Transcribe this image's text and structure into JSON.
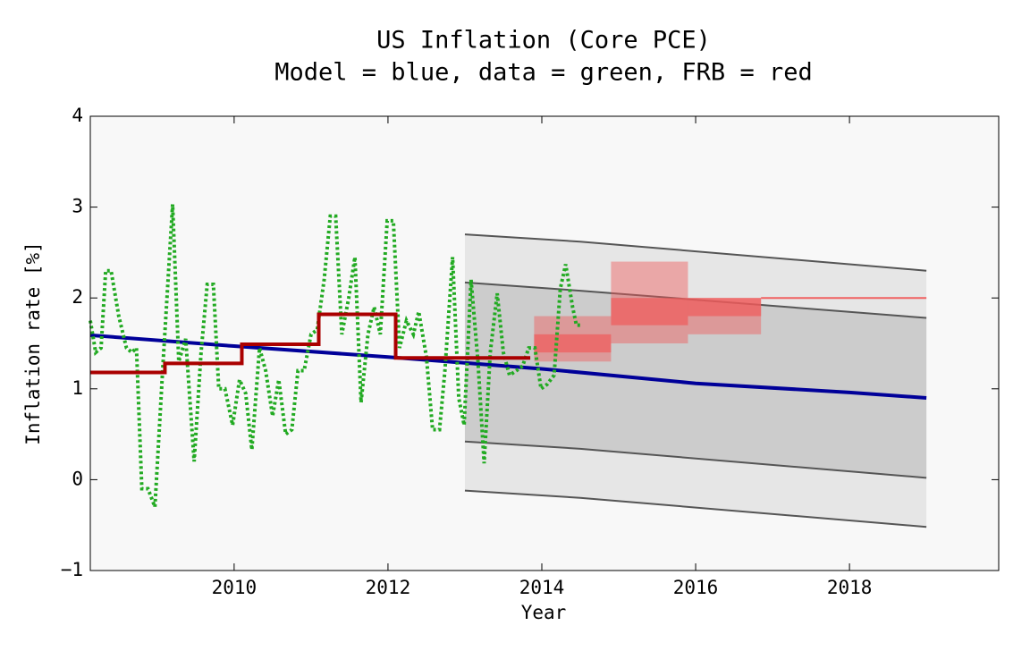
{
  "chart_data": {
    "type": "line",
    "title": "US Inflation (Core PCE)",
    "subtitle": "Model = blue, data = green, FRB = red",
    "xlabel": "Year",
    "ylabel": "Inflation rate [%]",
    "xlim": [
      2008.13,
      2019.94
    ],
    "ylim": [
      -1,
      4
    ],
    "xticks": [
      2010,
      2012,
      2014,
      2016,
      2018
    ],
    "yticks": [
      {
        "value": -1,
        "label": "−1"
      },
      0,
      1,
      2,
      3,
      4
    ],
    "bands": [
      {
        "color": "#e6e6e6",
        "edge": "#555555",
        "x": [
          2013,
          2014.5,
          2019
        ],
        "upper": [
          2.7,
          2.62,
          2.3
        ],
        "lower": [
          -0.12,
          -0.2,
          -0.52
        ]
      },
      {
        "color": "#cccccc",
        "edge": "#555555",
        "x": [
          2013,
          2014.5,
          2019
        ],
        "upper": [
          2.17,
          2.08,
          1.78
        ],
        "lower": [
          0.42,
          0.34,
          0.02
        ]
      }
    ],
    "boxes": [
      {
        "color": "rgba(240,90,90,0.45)",
        "x0": 2013.9,
        "x1": 2014.9,
        "low": 1.3,
        "high": 1.8
      },
      {
        "color": "rgba(240,90,90,0.7)",
        "x0": 2013.9,
        "x1": 2014.9,
        "low": 1.4,
        "high": 1.6
      },
      {
        "color": "rgba(240,90,90,0.45)",
        "x0": 2014.9,
        "x1": 2015.9,
        "low": 1.5,
        "high": 2.4
      },
      {
        "color": "rgba(240,90,90,0.7)",
        "x0": 2014.9,
        "x1": 2015.9,
        "low": 1.7,
        "high": 2.0
      },
      {
        "color": "rgba(240,90,90,0.45)",
        "x0": 2015.9,
        "x1": 2016.85,
        "low": 1.6,
        "high": 2.0
      },
      {
        "color": "rgba(240,90,90,0.7)",
        "x0": 2015.9,
        "x1": 2016.85,
        "low": 1.8,
        "high": 2.0
      }
    ],
    "series": [
      {
        "color": "#000099",
        "width": 4,
        "x": [
          2008.13,
          2010,
          2012,
          2014,
          2016,
          2018,
          2019
        ],
        "values": [
          1.59,
          1.47,
          1.35,
          1.22,
          1.06,
          0.96,
          0.9
        ]
      },
      {
        "color": "#22aa22",
        "width": 4,
        "dash": "3,3",
        "x": [
          2008.13,
          2008.2,
          2008.27,
          2008.33,
          2008.4,
          2008.5,
          2008.6,
          2008.67,
          2008.73,
          2008.8,
          2008.88,
          2008.97,
          2009.07,
          2009.2,
          2009.28,
          2009.37,
          2009.48,
          2009.57,
          2009.65,
          2009.73,
          2009.8,
          2009.88,
          2009.98,
          2010.07,
          2010.15,
          2010.23,
          2010.33,
          2010.41,
          2010.5,
          2010.58,
          2010.67,
          2010.75,
          2010.83,
          2010.91,
          2011.0,
          2011.08,
          2011.17,
          2011.25,
          2011.32,
          2011.4,
          2011.49,
          2011.57,
          2011.65,
          2011.74,
          2011.82,
          2011.9,
          2011.99,
          2012.07,
          2012.15,
          2012.24,
          2012.33,
          2012.4,
          2012.5,
          2012.58,
          2012.67,
          2012.74,
          2012.84,
          2012.92,
          2012.99,
          2013.08,
          2013.17,
          2013.25,
          2013.33,
          2013.42,
          2013.5,
          2013.58,
          2013.67,
          2013.75,
          2013.83,
          2013.91,
          2013.99,
          2014.07,
          2014.16,
          2014.24,
          2014.31,
          2014.4,
          2014.45,
          2014.52
        ],
        "values": [
          1.75,
          1.4,
          1.45,
          2.3,
          2.3,
          1.8,
          1.45,
          1.4,
          1.45,
          -0.1,
          -0.1,
          -0.3,
          1.2,
          3.03,
          1.3,
          1.55,
          0.2,
          1.4,
          2.15,
          2.15,
          1.0,
          1.0,
          0.6,
          1.1,
          0.95,
          0.33,
          1.45,
          1.2,
          0.7,
          1.1,
          0.5,
          0.55,
          1.2,
          1.2,
          1.6,
          1.65,
          2.2,
          2.9,
          2.9,
          1.6,
          2.0,
          2.45,
          0.85,
          1.6,
          1.9,
          1.6,
          2.85,
          2.85,
          1.45,
          1.75,
          1.6,
          1.85,
          1.35,
          0.55,
          0.55,
          1.2,
          2.45,
          0.9,
          0.6,
          2.2,
          1.3,
          0.18,
          1.4,
          2.05,
          1.4,
          1.15,
          1.2,
          1.25,
          1.45,
          1.45,
          1.0,
          1.05,
          1.15,
          2.1,
          2.37,
          1.9,
          1.7,
          1.7
        ]
      },
      {
        "color": "#aa0000",
        "width": 4,
        "x": [
          2008.13,
          2009.1,
          2009.1,
          2010.1,
          2010.1,
          2011.1,
          2011.1,
          2012.1,
          2012.1,
          2013.85
        ],
        "values": [
          1.18,
          1.18,
          1.28,
          1.28,
          1.49,
          1.49,
          1.82,
          1.82,
          1.34,
          1.34
        ]
      },
      {
        "color": "#f06060",
        "width": 2,
        "x": [
          2016.85,
          2019
        ],
        "values": [
          2.0,
          2.0
        ]
      }
    ]
  }
}
